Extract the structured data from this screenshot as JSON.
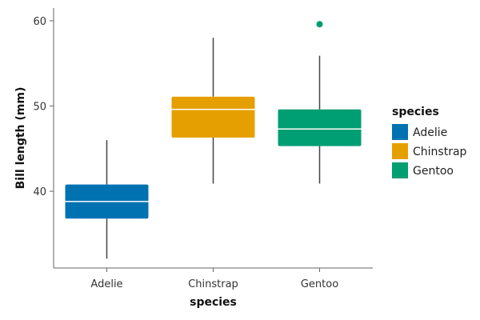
{
  "chart_data": {
    "type": "boxplot",
    "xlabel": "species",
    "ylabel": "Bill length (mm)",
    "categories": [
      "Adelie",
      "Chinstrap",
      "Gentoo"
    ],
    "ylim": [
      31,
      61.5
    ],
    "yticks": [
      40,
      50,
      60
    ],
    "grid": false,
    "legend": {
      "title": "species",
      "position": "right",
      "entries": [
        "Adelie",
        "Chinstrap",
        "Gentoo"
      ]
    },
    "series": [
      {
        "name": "Adelie",
        "color": "#0072B2",
        "min": 32.1,
        "q1": 36.8,
        "median": 38.8,
        "q3": 40.8,
        "max": 46.0,
        "outliers": []
      },
      {
        "name": "Chinstrap",
        "color": "#E69F00",
        "min": 40.9,
        "q1": 46.3,
        "median": 49.6,
        "q3": 51.1,
        "max": 58.0,
        "outliers": []
      },
      {
        "name": "Gentoo",
        "color": "#009E73",
        "min": 40.9,
        "q1": 45.3,
        "median": 47.3,
        "q3": 49.6,
        "max": 55.9,
        "outliers": [
          59.6
        ]
      }
    ]
  }
}
